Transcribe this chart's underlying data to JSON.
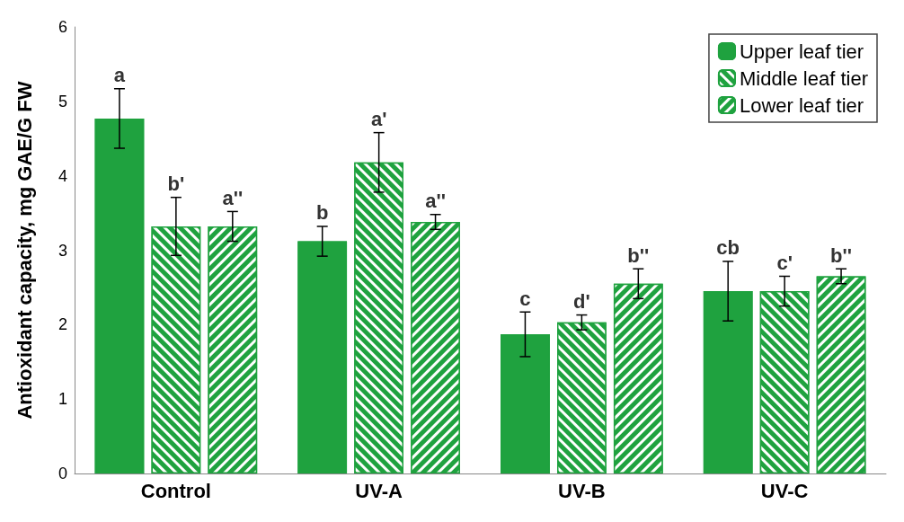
{
  "chart_data": {
    "type": "bar",
    "ylabel": "Antioxidant capacity, mg GAE/G FW",
    "categories": [
      "Control",
      "UV-A",
      "UV-B",
      "UV-C"
    ],
    "series": [
      {
        "name": "Upper leaf tier",
        "color": "#1fa23f",
        "values": [
          4.77,
          3.12,
          1.87,
          2.45
        ],
        "errors": [
          0.4,
          0.2,
          0.3,
          0.4
        ]
      },
      {
        "name": "Middle leaf tier",
        "color": "#1fa23f",
        "values": [
          3.32,
          4.18,
          2.03,
          2.45
        ],
        "errors": [
          0.39,
          0.4,
          0.1,
          0.2
        ]
      },
      {
        "name": "Lower leaf tier",
        "color": "#1fa23f",
        "values": [
          3.32,
          3.38,
          2.55,
          2.65
        ],
        "errors": [
          0.2,
          0.1,
          0.2,
          0.1
        ]
      }
    ],
    "ylim": [
      0,
      6
    ],
    "yticks": [
      0,
      1,
      2,
      3,
      4,
      5,
      6
    ],
    "grid": false,
    "legend": "top right",
    "annotations": [
      "a",
      "b'",
      "a''",
      "b",
      "a'",
      "a''",
      "c",
      "d'",
      "b''",
      "cb",
      "c'",
      "b''"
    ]
  }
}
